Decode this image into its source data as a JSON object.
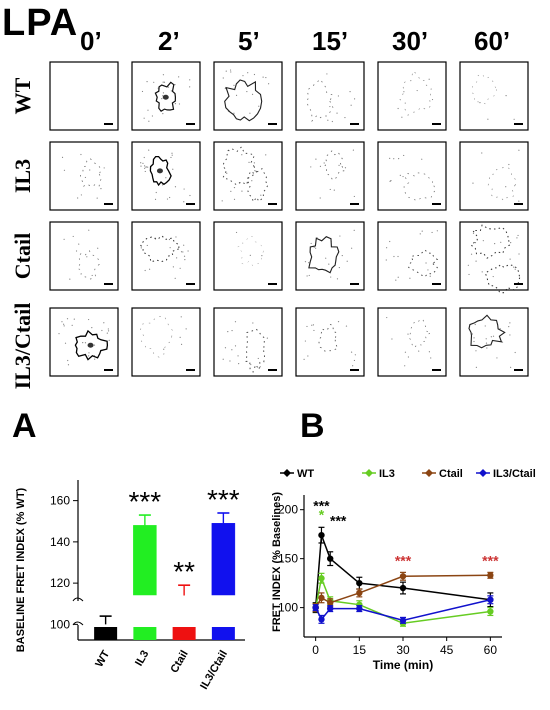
{
  "figure": {
    "main_label": "LPA",
    "panel_a_letter": "A",
    "panel_b_letter": "B",
    "time_columns": [
      "0’",
      "2’",
      "5’",
      "15’",
      "30’",
      "60’"
    ],
    "row_labels": [
      "WT",
      "IL3",
      "Ctail",
      "IL3/Ctail"
    ]
  },
  "chart_data": [
    {
      "type": "bar",
      "ylabel": "BASELINE FRET INDEX (% WT)",
      "categories": [
        "WT",
        "IL3",
        "Ctail",
        "IL3/Ctail"
      ],
      "values": [
        100,
        148,
        114,
        149
      ],
      "errors": [
        4,
        5,
        5,
        5
      ],
      "ylim": [
        90,
        170
      ],
      "yticks": [
        100,
        120,
        140,
        160
      ],
      "colors": [
        "#000000",
        "#22ee22",
        "#ee1111",
        "#1111ee"
      ],
      "significance": [
        "",
        "***",
        "**",
        "***"
      ],
      "axis_break": true
    },
    {
      "type": "line",
      "xlabel": "Time (min)",
      "ylabel": "FRET INDEX (% Baselines)",
      "x": [
        0,
        2,
        5,
        15,
        30,
        60
      ],
      "xticks": [
        0,
        15,
        30,
        45,
        60
      ],
      "yticks": [
        100,
        150,
        200
      ],
      "xlim": [
        -4,
        64
      ],
      "ylim": [
        70,
        215
      ],
      "legend_placement": "top",
      "series": [
        {
          "name": "WT",
          "color": "#000000",
          "values": [
            100,
            174,
            150,
            125,
            120,
            108
          ],
          "errors": [
            5,
            8,
            7,
            6,
            6,
            7
          ]
        },
        {
          "name": "IL3",
          "color": "#66cc22",
          "values": [
            100,
            130,
            107,
            103,
            84,
            96
          ],
          "errors": [
            4,
            5,
            4,
            4,
            3,
            4
          ]
        },
        {
          "name": "Ctail",
          "color": "#8b4513",
          "values": [
            100,
            110,
            105,
            115,
            132,
            133
          ],
          "errors": [
            4,
            5,
            4,
            4,
            4,
            3
          ]
        },
        {
          "name": "IL3/Ctail",
          "color": "#1111cc",
          "values": [
            100,
            88,
            99,
            99,
            87,
            108
          ],
          "errors": [
            3,
            4,
            3,
            3,
            3,
            4
          ]
        }
      ],
      "annotations": [
        {
          "text": "***",
          "x": 2,
          "y": 199,
          "color": "#000000"
        },
        {
          "text": "*",
          "x": 2,
          "y": 190,
          "color": "#66cc22"
        },
        {
          "text": "***",
          "x": 5,
          "y": 184,
          "color": "#000000"
        },
        {
          "text": "***",
          "x": 30,
          "y": 143,
          "color": "#cc3333"
        },
        {
          "text": "***",
          "x": 60,
          "y": 143,
          "color": "#cc3333"
        }
      ]
    }
  ]
}
